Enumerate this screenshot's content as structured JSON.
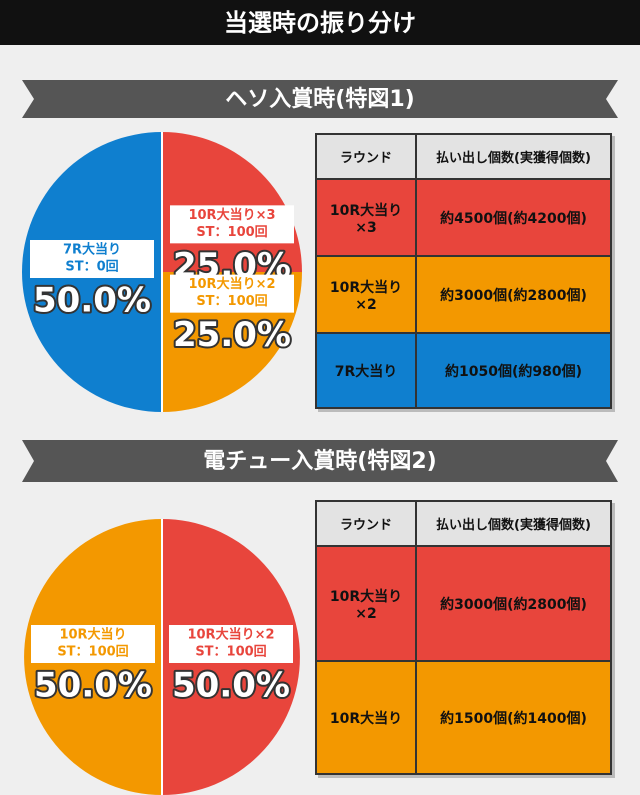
{
  "header": {
    "title": "当選時の振り分け"
  },
  "sections": [
    {
      "title": "ヘソ入賞時(特図1)",
      "table": {
        "header": [
          "ラウンド",
          "払い出し個数(実獲得個数)"
        ],
        "rows": [
          {
            "cells": [
              "10R大当り×3",
              "約4500個(約4200個)"
            ],
            "color": "#e8453c"
          },
          {
            "cells": [
              "10R大当り×2",
              "約3000個(約2800個)"
            ],
            "color": "#f39800"
          },
          {
            "cells": [
              "7R大当り",
              "約1050個(約980個)"
            ],
            "color": "#0f7fcf"
          }
        ]
      }
    },
    {
      "title": "電チュー入賞時(特図2)",
      "table": {
        "header": [
          "ラウンド",
          "払い出し個数(実獲得個数)"
        ],
        "rows": [
          {
            "cells": [
              "10R大当り×2",
              "約3000個(約2800個)"
            ],
            "color": "#e8453c"
          },
          {
            "cells": [
              "10R大当り",
              "約1500個(約1400個)"
            ],
            "color": "#f39800"
          }
        ]
      }
    }
  ],
  "chart_data": [
    {
      "type": "pie",
      "categories": [
        "10R大当り×3",
        "10R大当り×2",
        "7R大当り"
      ],
      "sublabels": [
        "ST：100回",
        "ST：100回",
        "ST：0回"
      ],
      "values": [
        25,
        25,
        50
      ],
      "value_labels": [
        "25.0%",
        "25.0%",
        "50.0%"
      ],
      "colors": [
        "#e8453c",
        "#f39800",
        "#0f7fcf"
      ]
    },
    {
      "type": "pie",
      "categories": [
        "10R大当り×2",
        "10R大当り"
      ],
      "sublabels": [
        "ST：100回",
        "ST：100回"
      ],
      "values": [
        50,
        50
      ],
      "value_labels": [
        "50.0%",
        "50.0%"
      ],
      "colors": [
        "#e8453c",
        "#f39800"
      ]
    }
  ]
}
